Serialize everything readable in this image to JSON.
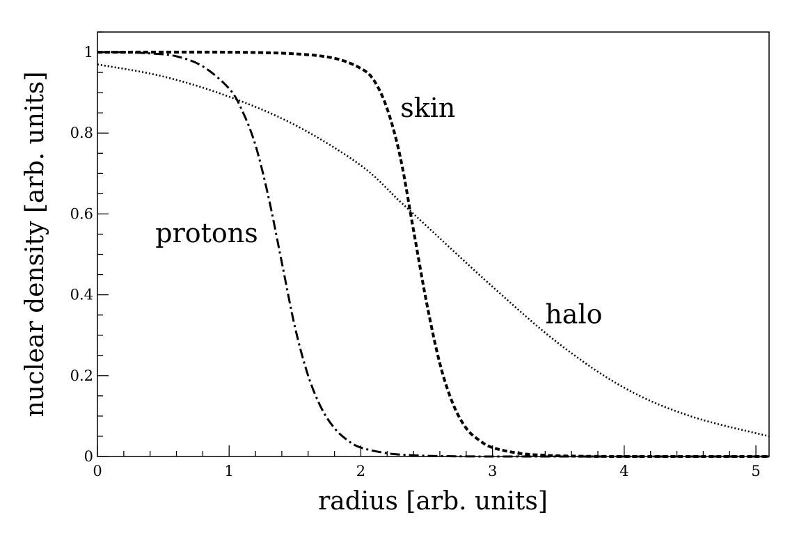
{
  "chart_data": {
    "type": "line",
    "title": "",
    "xlabel": "radius [arb. units]",
    "ylabel": "nuclear density [arb. units]",
    "xlim": [
      0,
      5.1
    ],
    "ylim": [
      0,
      1.05
    ],
    "x_ticks": [
      0,
      1,
      2,
      3,
      4,
      5
    ],
    "x_tick_labels": [
      "0",
      "1",
      "2",
      "3",
      "4",
      "5"
    ],
    "y_ticks": [
      0,
      0.2,
      0.4,
      0.6,
      0.8,
      1
    ],
    "y_tick_labels": [
      "0",
      "0.2",
      "0.4",
      "0.6",
      "0.8",
      "1"
    ],
    "grid": false,
    "series": [
      {
        "name": "protons",
        "style": "dashdot",
        "x": [
          0,
          0.2,
          0.4,
          0.6,
          0.8,
          1.0,
          1.1,
          1.2,
          1.3,
          1.4,
          1.5,
          1.6,
          1.7,
          1.8,
          1.9,
          2.0,
          2.2,
          2.4,
          2.6,
          3.0,
          4.0,
          5.1
        ],
        "y": [
          1.0,
          1.0,
          0.997,
          0.99,
          0.965,
          0.91,
          0.855,
          0.77,
          0.64,
          0.48,
          0.32,
          0.2,
          0.12,
          0.07,
          0.04,
          0.022,
          0.008,
          0.003,
          0.001,
          0.0,
          0.0,
          0.0
        ]
      },
      {
        "name": "skin",
        "style": "dashed",
        "x": [
          0,
          1.0,
          1.5,
          1.8,
          2.0,
          2.1,
          2.2,
          2.3,
          2.4,
          2.5,
          2.6,
          2.7,
          2.8,
          2.9,
          3.0,
          3.2,
          3.4,
          3.6,
          4.0,
          5.1
        ],
        "y": [
          1.0,
          1.0,
          0.996,
          0.985,
          0.96,
          0.93,
          0.86,
          0.74,
          0.56,
          0.38,
          0.23,
          0.13,
          0.07,
          0.04,
          0.022,
          0.008,
          0.003,
          0.001,
          0.0,
          0.0
        ]
      },
      {
        "name": "halo",
        "style": "dotted",
        "x": [
          0,
          0.5,
          1.0,
          1.5,
          2.0,
          2.3,
          2.5,
          3.0,
          3.5,
          4.0,
          4.5,
          5.1
        ],
        "y": [
          0.97,
          0.94,
          0.89,
          0.82,
          0.72,
          0.63,
          0.57,
          0.42,
          0.28,
          0.17,
          0.1,
          0.05
        ]
      }
    ],
    "annotations": [
      {
        "text": "skin",
        "x": 2.3,
        "y": 0.84
      },
      {
        "text": "protons",
        "x": 0.44,
        "y": 0.53
      },
      {
        "text": "halo",
        "x": 3.4,
        "y": 0.33
      }
    ]
  }
}
